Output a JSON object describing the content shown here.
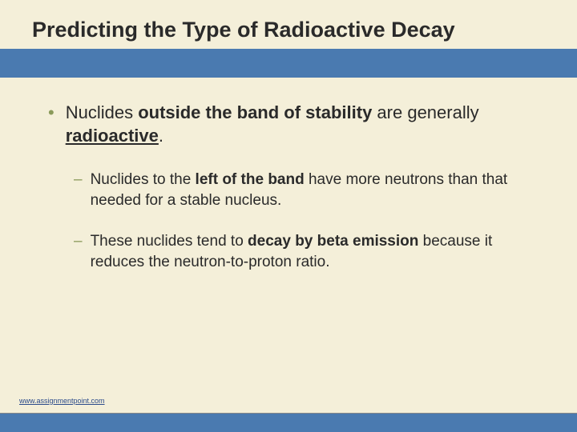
{
  "slide": {
    "title": "Predicting the Type of Radioactive Decay",
    "background_color": "#f4efd9",
    "band_color": "#4a7ab0",
    "bullet_marker_color": "#8a9a5a",
    "text_color": "#2a2a2a",
    "title_fontsize": 27,
    "main_fontsize": 22,
    "sub_fontsize": 19,
    "main_bullet": {
      "marker": "•",
      "segments": [
        {
          "text": "Nuclides ",
          "bold": false,
          "underline": false
        },
        {
          "text": "outside the band of stability",
          "bold": true,
          "underline": false
        },
        {
          "text": " are generally ",
          "bold": false,
          "underline": false
        },
        {
          "text": "radioactive",
          "bold": true,
          "underline": true
        },
        {
          "text": ".",
          "bold": false,
          "underline": false
        }
      ]
    },
    "sub_bullets": [
      {
        "marker": "–",
        "segments": [
          {
            "text": "Nuclides to the ",
            "bold": false,
            "underline": false
          },
          {
            "text": "left of the band",
            "bold": true,
            "underline": false
          },
          {
            "text": " have more neutrons than that needed for a stable nucleus.",
            "bold": false,
            "underline": false
          }
        ]
      },
      {
        "marker": "–",
        "segments": [
          {
            "text": "These nuclides tend to ",
            "bold": false,
            "underline": false
          },
          {
            "text": "decay by beta emission",
            "bold": true,
            "underline": false
          },
          {
            "text": " because it reduces the neutron-to-proton ratio.",
            "bold": false,
            "underline": false
          }
        ]
      }
    ],
    "footer_link": "www.assignmentpoint.com"
  }
}
